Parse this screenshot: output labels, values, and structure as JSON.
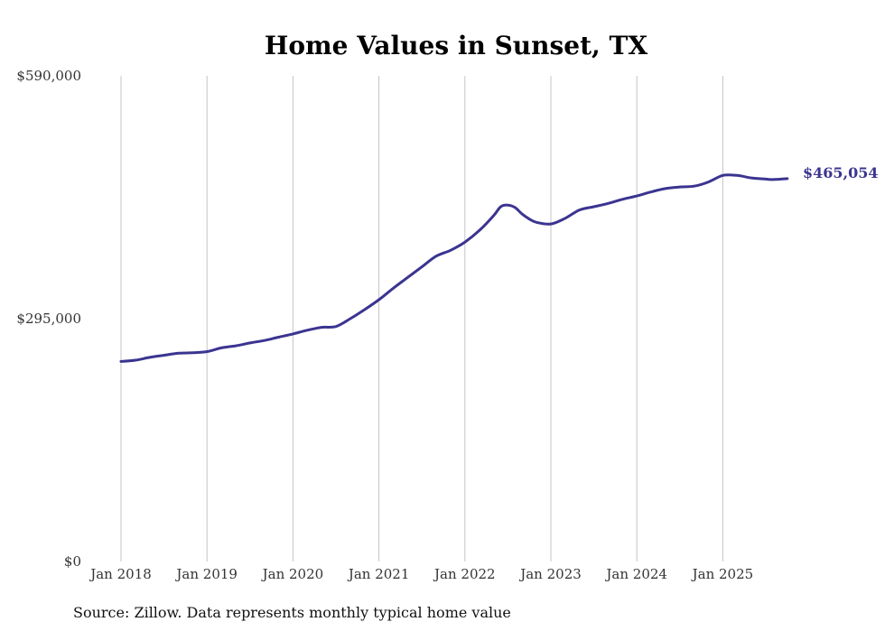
{
  "chart_data": {
    "type": "line",
    "title": "Home Values in Sunset, TX",
    "source": "Source: Zillow. Data represents monthly typical home value",
    "xlabel": "",
    "ylabel": "",
    "ylim": [
      0,
      590000
    ],
    "y_ticks": [
      {
        "value": 0,
        "label": "$0"
      },
      {
        "value": 295000,
        "label": "$295,000"
      },
      {
        "value": 590000,
        "label": "$590,000"
      }
    ],
    "x_ticks": [
      {
        "year": 2018,
        "label": "Jan 2018"
      },
      {
        "year": 2019,
        "label": "Jan 2019"
      },
      {
        "year": 2020,
        "label": "Jan 2020"
      },
      {
        "year": 2021,
        "label": "Jan 2021"
      },
      {
        "year": 2022,
        "label": "Jan 2022"
      },
      {
        "year": 2023,
        "label": "Jan 2023"
      },
      {
        "year": 2024,
        "label": "Jan 2024"
      },
      {
        "year": 2025,
        "label": "Jan 2025"
      }
    ],
    "xlim": [
      "2018-01",
      "2025-10"
    ],
    "grid": "vertical",
    "line_color": "#3b3490",
    "end_label": "$465,054",
    "series": [
      {
        "points": [
          [
            "2018-01",
            243000
          ],
          [
            "2018-03",
            244500
          ],
          [
            "2018-05",
            248000
          ],
          [
            "2018-07",
            250500
          ],
          [
            "2018-09",
            253000
          ],
          [
            "2018-11",
            253500
          ],
          [
            "2019-01",
            255000
          ],
          [
            "2019-03",
            259500
          ],
          [
            "2019-05",
            262000
          ],
          [
            "2019-07",
            265500
          ],
          [
            "2019-09",
            268500
          ],
          [
            "2019-11",
            272500
          ],
          [
            "2020-01",
            276500
          ],
          [
            "2020-03",
            281000
          ],
          [
            "2020-05",
            284500
          ],
          [
            "2020-07",
            285500
          ],
          [
            "2020-09",
            295000
          ],
          [
            "2020-11",
            306000
          ],
          [
            "2021-01",
            318000
          ],
          [
            "2021-03",
            332000
          ],
          [
            "2021-05",
            345000
          ],
          [
            "2021-07",
            358000
          ],
          [
            "2021-09",
            371000
          ],
          [
            "2021-11",
            378000
          ],
          [
            "2022-01",
            388000
          ],
          [
            "2022-03",
            402000
          ],
          [
            "2022-05",
            420000
          ],
          [
            "2022-06",
            431000
          ],
          [
            "2022-07",
            433000
          ],
          [
            "2022-08",
            430000
          ],
          [
            "2022-09",
            422000
          ],
          [
            "2022-10",
            416000
          ],
          [
            "2022-11",
            412000
          ],
          [
            "2023-01",
            410000
          ],
          [
            "2023-03",
            417000
          ],
          [
            "2023-05",
            427000
          ],
          [
            "2023-07",
            431000
          ],
          [
            "2023-09",
            435000
          ],
          [
            "2023-11",
            440000
          ],
          [
            "2024-01",
            444000
          ],
          [
            "2024-03",
            449000
          ],
          [
            "2024-05",
            453000
          ],
          [
            "2024-07",
            455000
          ],
          [
            "2024-09",
            456000
          ],
          [
            "2024-11",
            461000
          ],
          [
            "2025-01",
            469000
          ],
          [
            "2025-03",
            469000
          ],
          [
            "2025-05",
            466000
          ],
          [
            "2025-07",
            464500
          ],
          [
            "2025-08",
            464000
          ],
          [
            "2025-10",
            465054
          ]
        ]
      }
    ]
  }
}
